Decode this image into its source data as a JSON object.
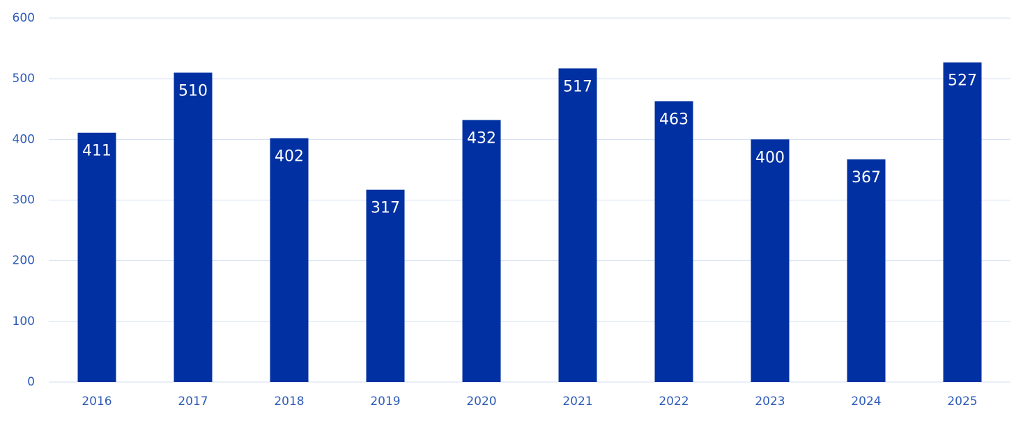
{
  "chart_data": {
    "type": "bar",
    "categories": [
      "2016",
      "2017",
      "2018",
      "2019",
      "2020",
      "2021",
      "2022",
      "2023",
      "2024",
      "2025"
    ],
    "values": [
      411,
      510,
      402,
      317,
      432,
      517,
      463,
      400,
      367,
      527
    ],
    "color": "#0030a1",
    "ylim": [
      0,
      600
    ],
    "yticks": [
      0,
      100,
      200,
      300,
      400,
      500,
      600
    ],
    "grid": true
  }
}
